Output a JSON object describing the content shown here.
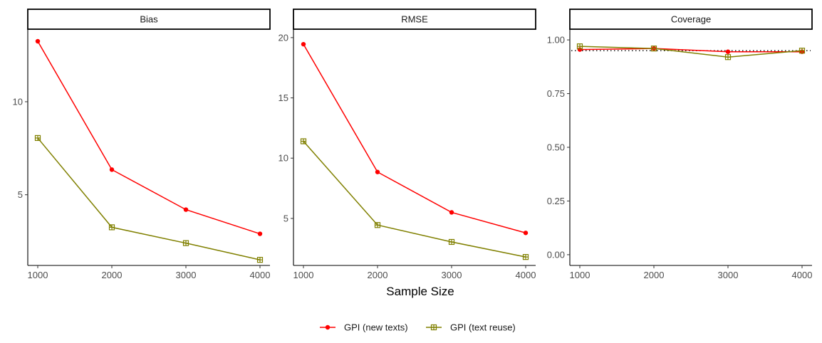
{
  "chart_data": {
    "type": "line",
    "xlabel": "Sample Size",
    "x": [
      1000,
      2000,
      3000,
      4000
    ],
    "x_ticks": [
      "1000",
      "2000",
      "3000",
      "4000"
    ],
    "legend_position": "bottom",
    "grid": false,
    "series_styles": [
      {
        "name": "GPI (new texts)",
        "color": "#ff0000",
        "marker": "circle"
      },
      {
        "name": "GPI (text reuse)",
        "color": "#808000",
        "marker": "square-plus"
      }
    ],
    "panels": [
      {
        "title": "Bias",
        "ylim": [
          1.2,
          13.9
        ],
        "y_ticks": [
          5,
          10
        ],
        "y_tick_labels": [
          "5",
          "10"
        ],
        "series": [
          {
            "name": "GPI (new texts)",
            "values": [
              13.25,
              6.35,
              4.2,
              2.9
            ]
          },
          {
            "name": "GPI (text reuse)",
            "values": [
              8.05,
              3.25,
              2.4,
              1.5
            ]
          }
        ]
      },
      {
        "title": "RMSE",
        "ylim": [
          1.1,
          20.7
        ],
        "y_ticks": [
          5,
          10,
          15,
          20
        ],
        "y_tick_labels": [
          "5",
          "10",
          "15",
          "20"
        ],
        "series": [
          {
            "name": "GPI (new texts)",
            "values": [
              19.45,
              8.85,
              5.5,
              3.8
            ]
          },
          {
            "name": "GPI (text reuse)",
            "values": [
              11.4,
              4.45,
              3.05,
              1.8
            ]
          }
        ]
      },
      {
        "title": "Coverage",
        "ylim": [
          -0.05,
          1.05
        ],
        "y_ticks": [
          0,
          0.25,
          0.5,
          0.75,
          1.0
        ],
        "y_tick_labels": [
          "0.00",
          "0.25",
          "0.50",
          "0.75",
          "1.00"
        ],
        "reference_line": 0.95,
        "series": [
          {
            "name": "GPI (new texts)",
            "values": [
              0.955,
              0.96,
              0.945,
              0.945
            ]
          },
          {
            "name": "GPI (text reuse)",
            "values": [
              0.97,
              0.96,
              0.92,
              0.95
            ]
          }
        ]
      }
    ]
  }
}
